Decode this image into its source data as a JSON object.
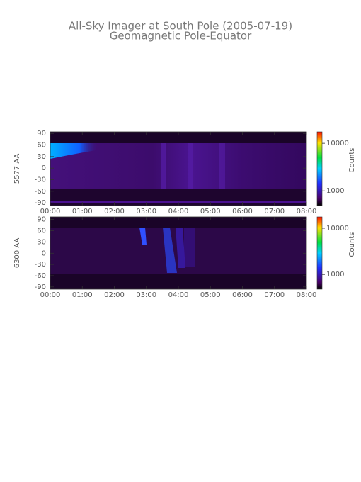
{
  "chart_data": [
    {
      "type": "heatmap",
      "title": "All-Sky Imager at South Pole (2005-07-19)",
      "subtitle": "Geomagnetic Pole-Equator",
      "ylabel": "5577 AA",
      "xlim": [
        0,
        8
      ],
      "xticks": [
        {
          "value": 0,
          "label": "00:00"
        },
        {
          "value": 1,
          "label": "01:00"
        },
        {
          "value": 2,
          "label": "02:00"
        },
        {
          "value": 3,
          "label": "03:00"
        },
        {
          "value": 4,
          "label": "04:00"
        },
        {
          "value": 5,
          "label": "05:00"
        },
        {
          "value": 6,
          "label": "06:00"
        },
        {
          "value": 7,
          "label": "07:00"
        },
        {
          "value": 8,
          "label": "08:00"
        }
      ],
      "ylim": [
        -97,
        94
      ],
      "yticks": [
        -90,
        -60,
        -30,
        0,
        30,
        60,
        90
      ],
      "colorbar": {
        "label": "Counts",
        "log": true,
        "lim": [
          490,
          17400
        ],
        "ticks": [
          1000,
          10000
        ]
      }
    },
    {
      "type": "heatmap",
      "ylabel": "6300 AA",
      "xlim": [
        0,
        8
      ],
      "xticks": [
        {
          "value": 0,
          "label": "00:00"
        },
        {
          "value": 1,
          "label": "01:00"
        },
        {
          "value": 2,
          "label": "02:00"
        },
        {
          "value": 3,
          "label": "03:00"
        },
        {
          "value": 4,
          "label": "04:00"
        },
        {
          "value": 5,
          "label": "05:00"
        },
        {
          "value": 6,
          "label": "06:00"
        },
        {
          "value": 7,
          "label": "07:00"
        },
        {
          "value": 8,
          "label": "08:00"
        }
      ],
      "ylim": [
        -96,
        97
      ],
      "yticks": [
        -90,
        -60,
        -30,
        0,
        30,
        60,
        90
      ],
      "colorbar": {
        "label": "Counts",
        "log": true,
        "lim": [
          480,
          17600
        ],
        "ticks": [
          1000,
          10000
        ]
      }
    }
  ]
}
